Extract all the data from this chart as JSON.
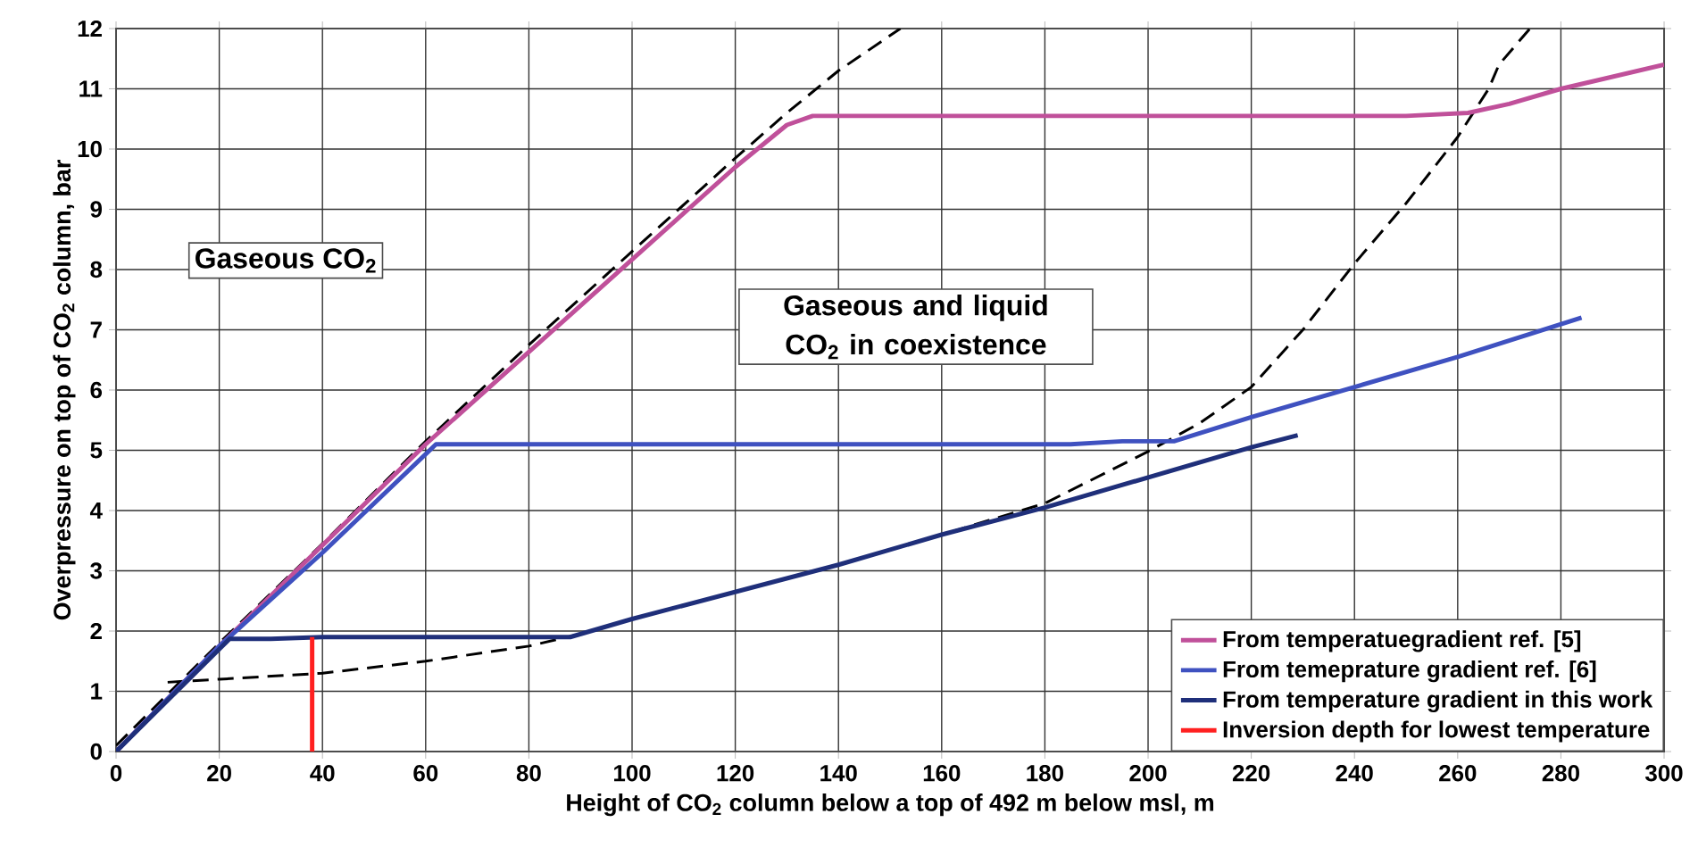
{
  "chart_data": {
    "type": "line",
    "xlabel": "Height of CO$_{2}$ column below a top of 492 m below msl, m",
    "ylabel": "Overpressure on top of CO$_{2}$ column, bar",
    "xlim": [
      0,
      300
    ],
    "ylim": [
      0,
      12
    ],
    "xticks": [
      0,
      20,
      40,
      60,
      80,
      100,
      120,
      140,
      160,
      180,
      200,
      220,
      240,
      260,
      280,
      300
    ],
    "yticks": [
      0,
      1,
      2,
      3,
      4,
      5,
      6,
      7,
      8,
      9,
      10,
      11,
      12
    ],
    "grid": true,
    "legend": "bottom right",
    "marker": "none",
    "annotations": [
      "Gaseous  CO$_{2}$",
      "Gaseous and liquid CO$_{2}$ in coexistence"
    ],
    "series": [
      {
        "x": [
          0,
          20,
          40,
          60,
          80,
          100,
          120,
          130,
          140,
          152
        ],
        "values": [
          0.1,
          1.8,
          3.45,
          5.15,
          6.75,
          8.3,
          9.85,
          10.6,
          11.3,
          12
        ],
        "color": "#000000",
        "line_style": "dashed"
      },
      {
        "x": [
          10,
          20,
          40,
          60,
          80,
          90,
          100,
          120,
          140,
          160,
          180,
          200,
          210,
          220,
          230,
          240,
          250,
          260,
          266,
          268,
          274
        ],
        "values": [
          1.15,
          1.2,
          1.3,
          1.5,
          1.75,
          1.95,
          2.2,
          2.65,
          3.1,
          3.6,
          4.12,
          4.98,
          5.45,
          6.05,
          7.0,
          8.1,
          9.1,
          10.2,
          11.0,
          11.4,
          12
        ],
        "color": "#000000",
        "line_style": "dashed"
      },
      {
        "name": "From temperatuegradient ref. [5]",
        "x": [
          0,
          20,
          60,
          120,
          130,
          135,
          250,
          262,
          270,
          280,
          300
        ],
        "values": [
          0,
          1.75,
          5.1,
          9.7,
          10.4,
          10.55,
          10.55,
          10.6,
          10.75,
          11.0,
          11.4
        ],
        "color": "#c0509a"
      },
      {
        "name": "From temeprature gradient ref. [6]",
        "x": [
          0,
          20,
          40,
          62,
          185,
          195,
          205,
          220,
          240,
          260,
          284
        ],
        "values": [
          0,
          1.75,
          3.3,
          5.1,
          5.1,
          5.15,
          5.15,
          5.55,
          6.05,
          6.55,
          7.2
        ],
        "color": "#3f51c0"
      },
      {
        "name": "From temperature gradient in this work",
        "x": [
          0,
          20,
          22,
          30,
          40,
          88,
          100,
          120,
          140,
          160,
          180,
          200,
          220,
          229
        ],
        "values": [
          0,
          1.7,
          1.87,
          1.87,
          1.9,
          1.9,
          2.2,
          2.65,
          3.1,
          3.6,
          4.05,
          4.55,
          5.05,
          5.25
        ],
        "color": "#1f2f7a"
      },
      {
        "name": "Inversion depth  for lowest temperature",
        "x": [
          38,
          38
        ],
        "values": [
          0,
          1.9
        ],
        "color": "#ff2020"
      }
    ]
  }
}
